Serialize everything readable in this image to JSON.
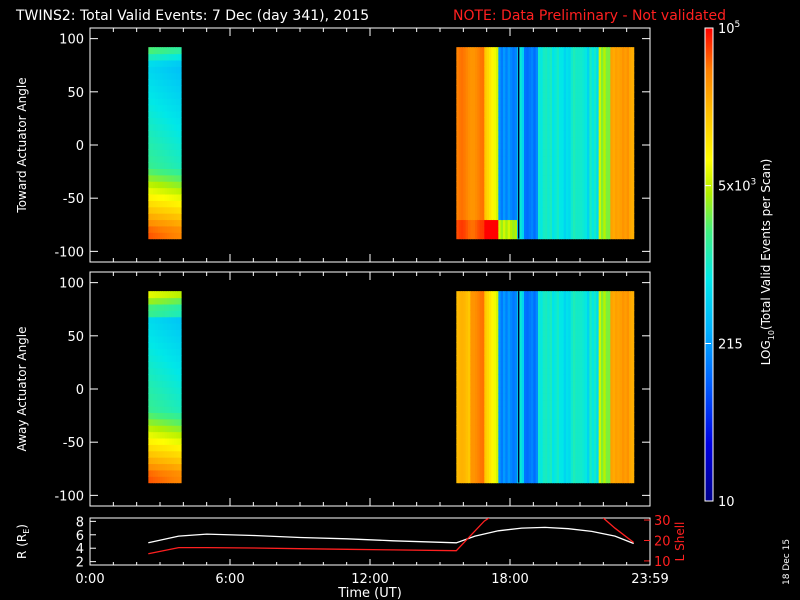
{
  "header": {
    "title": "TWINS2: Total Valid Events:  7 Dec (day 341), 2015",
    "note": "NOTE: Data Preliminary - Not validated"
  },
  "colors": {
    "background": "#000000",
    "axes": "#ffffff",
    "note": "#ff2020",
    "lshell": "#ff2020",
    "radius": "#ffffff"
  },
  "footer": {
    "date_stamp": "18 Dec 15"
  },
  "colorbar": {
    "label_parts": [
      "LOG",
      "10",
      "(Total Valid  Events per Scan)"
    ],
    "ticks": [
      {
        "mantissa": "10",
        "exp": "",
        "frac": 0.0
      },
      {
        "mantissa": "215",
        "exp": "",
        "frac": 0.333
      },
      {
        "mantissa": "5x10",
        "exp": "3",
        "frac": 0.6667
      },
      {
        "mantissa": "10",
        "exp": "5",
        "frac": 1.0
      }
    ],
    "scale": "log",
    "range": [
      10,
      100000
    ]
  },
  "chart_data": [
    {
      "type": "heatmap",
      "name": "toward",
      "ylabel": "Toward Actuator Angle",
      "ylim": [
        -110,
        110
      ],
      "yticks": [
        "100",
        "50",
        "0",
        "-50",
        "-100"
      ],
      "ytick_values": [
        100,
        50,
        0,
        -50,
        -100
      ],
      "xlim_hours": [
        0,
        24
      ],
      "angle_range": [
        -88,
        92
      ],
      "data_blocks": [
        {
          "start_hour": 2.5,
          "end_hour": 3.9
        },
        {
          "start_hour": 15.7,
          "end_hour": 23.3
        }
      ]
    },
    {
      "type": "heatmap",
      "name": "away",
      "ylabel": "Away Actuator Angle",
      "ylim": [
        -110,
        110
      ],
      "yticks": [
        "100",
        "50",
        "0",
        "-50",
        "-100"
      ],
      "ytick_values": [
        100,
        50,
        0,
        -50,
        -100
      ],
      "xlim_hours": [
        0,
        24
      ],
      "angle_range": [
        -88,
        92
      ],
      "data_blocks": [
        {
          "start_hour": 2.5,
          "end_hour": 3.9
        },
        {
          "start_hour": 15.7,
          "end_hour": 23.3
        }
      ]
    },
    {
      "type": "line",
      "name": "orbit",
      "xlabel": "Time (UT)",
      "xticks": [
        "0:00",
        "6:00",
        "12:00",
        "18:00",
        "23:59"
      ],
      "xtick_hours": [
        0,
        6,
        12,
        18,
        24
      ],
      "ylabel_left": "R (R",
      "ylabel_left_sub": "E",
      "ylabel_left_end": ")",
      "yticks_left": [
        "8",
        "6",
        "4",
        "2"
      ],
      "ytick_left_values": [
        8,
        6,
        4,
        2
      ],
      "ylim_left": [
        1.5,
        8.5
      ],
      "ylabel_right": "L Shell",
      "yticks_right": [
        "30",
        "20",
        "10"
      ],
      "ytick_right_values": [
        30,
        20,
        10
      ],
      "ylim_right": [
        8,
        31
      ],
      "series": [
        {
          "axis": "left",
          "x": [
            2.5,
            3.8,
            5,
            7,
            9,
            11,
            13,
            15.7,
            16.5,
            17.5,
            18.5,
            19.5,
            20.5,
            21.5,
            22.5,
            23.3
          ],
          "y": [
            4.8,
            5.8,
            6.1,
            5.9,
            5.6,
            5.4,
            5.1,
            4.8,
            5.8,
            6.6,
            7.0,
            7.1,
            6.9,
            6.5,
            5.8,
            4.7
          ]
        },
        {
          "axis": "right",
          "x": [
            2.5,
            3.8,
            5,
            7,
            9,
            11,
            13,
            15.7,
            16.9,
            17.1
          ],
          "y": [
            13.5,
            16.5,
            16.5,
            16.3,
            16.0,
            15.7,
            15.4,
            15.0,
            29.5,
            31
          ]
        },
        {
          "axis": "right",
          "x": [
            22.0,
            22.5,
            23.3
          ],
          "y": [
            31,
            26,
            19
          ]
        }
      ]
    }
  ]
}
